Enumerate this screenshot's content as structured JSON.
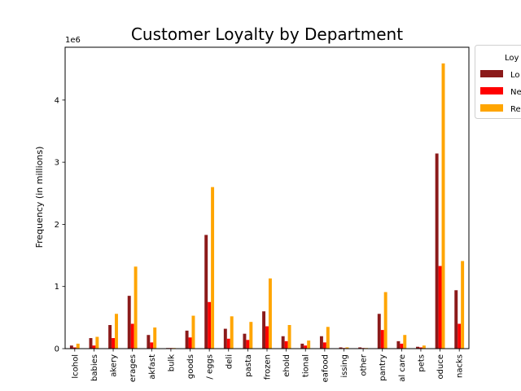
{
  "chart_data": {
    "type": "bar",
    "title": "Customer Loyalty by Department",
    "ylabel": "Frequency (in millions)",
    "xlabel": "",
    "scale_label": "1e6",
    "ylim": [
      0,
      4.85
    ],
    "yticks": [
      0,
      1,
      2,
      3,
      4
    ],
    "grid": false,
    "legend": {
      "title": "Loy",
      "placement": "right-outside",
      "labels": [
        "Lo",
        "Ne",
        "Re"
      ]
    },
    "categories": [
      "lcohol",
      "babies",
      "akery",
      "erages",
      "akfast",
      "bulk",
      "goods",
      "/ eggs",
      "deli",
      "pasta",
      "frozen",
      "ehold",
      "tional",
      "eafood",
      "issing",
      "other",
      "pantry",
      "al care",
      "pets",
      "oduce",
      "nacks"
    ],
    "series": [
      {
        "name": "Lo",
        "color": "#8b1a1a",
        "values": [
          0.05,
          0.17,
          0.38,
          0.85,
          0.22,
          0.01,
          0.29,
          1.83,
          0.32,
          0.24,
          0.6,
          0.2,
          0.08,
          0.2,
          0.02,
          0.02,
          0.56,
          0.12,
          0.03,
          3.14,
          0.94
        ]
      },
      {
        "name": "Ne",
        "color": "#ff0000",
        "values": [
          0.02,
          0.05,
          0.17,
          0.4,
          0.1,
          0.01,
          0.18,
          0.75,
          0.16,
          0.14,
          0.36,
          0.12,
          0.05,
          0.1,
          0.01,
          0.01,
          0.3,
          0.08,
          0.02,
          1.33,
          0.4
        ]
      },
      {
        "name": "Re",
        "color": "#ffa500",
        "values": [
          0.08,
          0.19,
          0.56,
          1.32,
          0.34,
          0.01,
          0.53,
          2.6,
          0.52,
          0.43,
          1.13,
          0.38,
          0.13,
          0.35,
          0.02,
          0.01,
          0.91,
          0.22,
          0.05,
          4.59,
          1.41
        ]
      }
    ]
  }
}
